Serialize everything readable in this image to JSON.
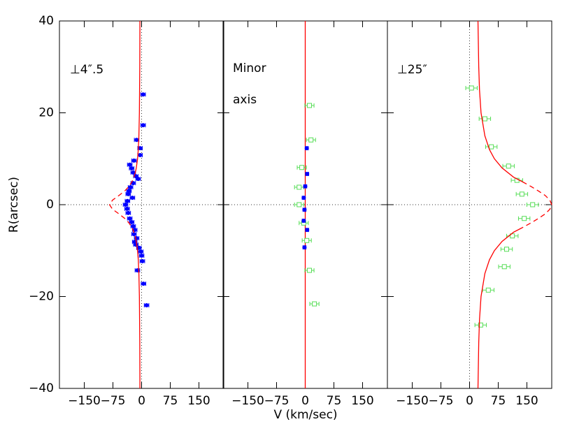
{
  "chart_data": [
    {
      "type": "scatter",
      "ylabel": "R(arcsec)",
      "annotations": [
        "⊥4″.5"
      ],
      "xlim": [
        -215,
        215
      ],
      "ylim": [
        -40,
        40
      ],
      "xticks": [
        {
          "value": -150,
          "label": "−150"
        },
        {
          "value": -75,
          "label": "−75"
        },
        0,
        75,
        150
      ],
      "yticks": [
        {
          "value": -40,
          "label": "−40"
        },
        {
          "value": -20,
          "label": "−20"
        },
        0,
        20,
        40
      ],
      "series": [
        {
          "kind": "points",
          "marker": "circle",
          "color": "#0000ff",
          "xerr": 6,
          "x": [
            4,
            4,
            -13,
            -4,
            -4,
            -20,
            -31,
            -26,
            -22,
            -15,
            -9,
            -22,
            -29,
            -33,
            -35,
            -24,
            -37,
            -42,
            -38,
            -35,
            -31,
            -26,
            -22,
            -18,
            -20,
            -13,
            -18,
            -15,
            -7,
            -2,
            0,
            2,
            -11,
            5,
            13
          ],
          "values": [
            24,
            17.3,
            14.1,
            12.3,
            10.8,
            9.6,
            8.7,
            7.9,
            7,
            6.2,
            5.6,
            4.7,
            3.8,
            3,
            2.3,
            1.5,
            0.8,
            0,
            -0.9,
            -1.8,
            -3,
            -3.8,
            -4.7,
            -5.5,
            -6.4,
            -7.3,
            -8.1,
            -8.7,
            -9.4,
            -10.2,
            -11.1,
            -12.3,
            -14.3,
            -17.2,
            -21.9
          ]
        },
        {
          "kind": "line",
          "style": "solid",
          "color": "#ff0000",
          "x": [
            -4.4,
            -4.8,
            -5.8,
            -7.1,
            -8.7,
            -10.6,
            -13.9,
            -16.4,
            null,
            -16.4,
            -13.9,
            -10.6,
            -8.7,
            -7.1,
            -5.8,
            -4.8,
            -4.4
          ],
          "values": [
            40,
            30,
            20,
            15,
            12,
            10,
            8,
            7,
            null,
            -7,
            -8,
            -10,
            -12,
            -15,
            -20,
            -30,
            -40
          ]
        },
        {
          "kind": "line",
          "style": "dashed",
          "color": "#ff0000",
          "x": [
            -16.4,
            -20,
            -25.2,
            -32.8,
            -44,
            -59.4,
            -76,
            -84,
            -76,
            -59.4,
            -44,
            -32.8,
            -25.2,
            -20,
            -16.4
          ],
          "values": [
            7,
            6,
            5,
            4,
            3,
            2,
            1,
            0,
            -1,
            -2,
            -3,
            -4,
            -5,
            -6,
            -7
          ]
        }
      ]
    },
    {
      "type": "scatter",
      "xlabel": "V (km/sec)",
      "annotations": [
        "Minor",
        "axis"
      ],
      "xlim": [
        -215,
        215
      ],
      "ylim": [
        -40,
        40
      ],
      "xticks": [
        {
          "value": -150,
          "label": "−150"
        },
        {
          "value": -75,
          "label": "−75"
        },
        0,
        75,
        150
      ],
      "series": [
        {
          "kind": "line",
          "style": "solid",
          "color": "#ff0000",
          "x": [
            0,
            0
          ],
          "values": [
            40,
            -40
          ]
        },
        {
          "kind": "points",
          "marker": "square",
          "color": "#55dd55",
          "xerr": 12,
          "x": [
            11,
            15,
            -9,
            -16,
            -16,
            -4,
            4,
            11,
            24
          ],
          "values": [
            21.6,
            14.1,
            8.1,
            3.8,
            0,
            -4,
            -7.8,
            -14.3,
            -21.6
          ]
        },
        {
          "kind": "points",
          "marker": "circle",
          "color": "#0000ff",
          "xerr": 4,
          "x": [
            4,
            5,
            0,
            -4,
            -2,
            -4,
            5,
            -2
          ],
          "values": [
            12.3,
            6.7,
            4,
            1.5,
            -1.1,
            -3.5,
            -5.5,
            -9.3
          ]
        }
      ]
    },
    {
      "type": "scatter",
      "annotations": [
        "⊥25″"
      ],
      "xlim": [
        -215,
        215
      ],
      "ylim": [
        -40,
        40
      ],
      "xticks": [
        {
          "value": -150,
          "label": "−150"
        },
        {
          "value": -75,
          "label": "−75"
        },
        0,
        75,
        150
      ],
      "series": [
        {
          "kind": "points",
          "marker": "square",
          "color": "#55dd55",
          "xerr": 15,
          "x": [
            5,
            40,
            57,
            102,
            124,
            137,
            165,
            143,
            112,
            97,
            91,
            49,
            29
          ],
          "values": [
            25.4,
            18.7,
            12.6,
            8.4,
            5.3,
            2.3,
            0,
            -3,
            -6.8,
            -9.7,
            -13.5,
            -18.6,
            -26.2
          ]
        },
        {
          "kind": "line",
          "style": "solid",
          "color": "#ff0000",
          "x": [
            22,
            24,
            26,
            30,
            40,
            52,
            65,
            85,
            115,
            138,
            null,
            138,
            115,
            85,
            65,
            52,
            40,
            30,
            26,
            24,
            22
          ],
          "values": [
            40,
            30,
            25,
            20,
            15,
            12,
            10,
            8,
            6,
            5,
            null,
            -5,
            -6,
            -8,
            -10,
            -12,
            -15,
            -20,
            -25,
            -30,
            -40
          ]
        },
        {
          "kind": "line",
          "style": "dashed",
          "color": "#ff0000",
          "x": [
            138,
            160,
            180,
            198,
            210,
            215,
            210,
            198,
            180,
            160,
            138
          ],
          "values": [
            5,
            4,
            3,
            2,
            1,
            0,
            -1,
            -2,
            -3,
            -4,
            -5
          ]
        }
      ]
    }
  ]
}
